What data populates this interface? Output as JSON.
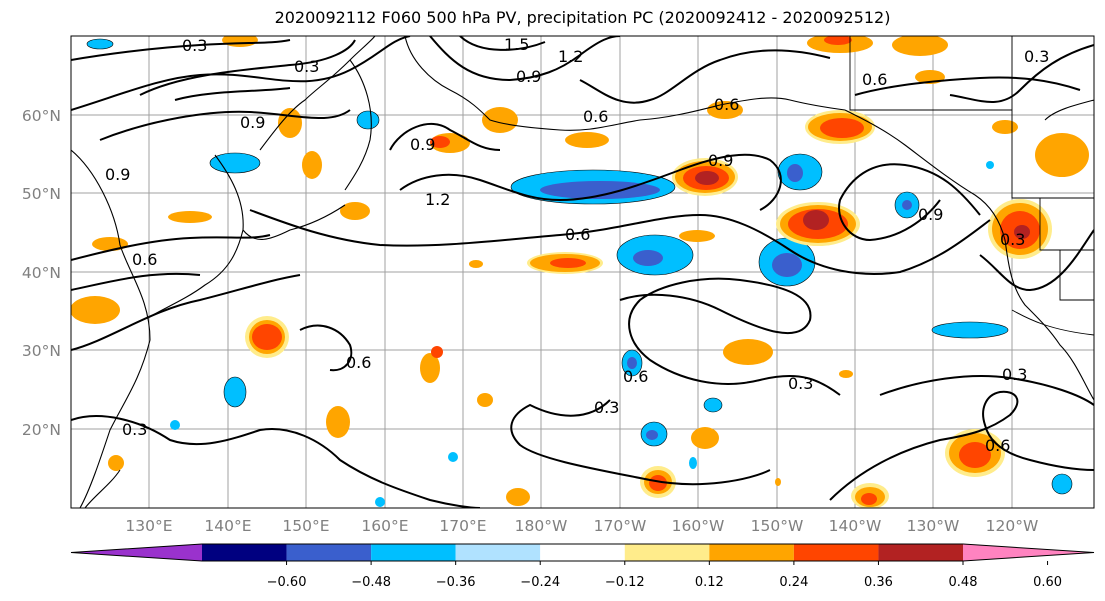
{
  "title": "2020092112 F060 500 hPa PV, precipitation PC (2020092412 - 2020092512)",
  "lat_labels": [
    "60°N",
    "50°N",
    "40°N",
    "30°N",
    "20°N"
  ],
  "lon_labels": [
    "130°E",
    "140°E",
    "150°E",
    "160°E",
    "170°E",
    "180°W",
    "170°W",
    "160°W",
    "150°W",
    "140°W",
    "130°W",
    "120°W"
  ],
  "pv_contour_labels": [
    {
      "text": "0.3"
    },
    {
      "text": "1.5"
    },
    {
      "text": "1.2"
    },
    {
      "text": "0.3"
    },
    {
      "text": "0.9"
    },
    {
      "text": "0.6"
    },
    {
      "text": "0.3"
    },
    {
      "text": "0.6"
    },
    {
      "text": "0.6"
    },
    {
      "text": "0.9"
    },
    {
      "text": "0.9"
    },
    {
      "text": "0.9"
    },
    {
      "text": "0.9"
    },
    {
      "text": "1.2"
    },
    {
      "text": "0.6"
    },
    {
      "text": "0.6"
    },
    {
      "text": "0.9"
    },
    {
      "text": "0.3"
    },
    {
      "text": "0.6"
    },
    {
      "text": "0.6"
    },
    {
      "text": "0.3"
    },
    {
      "text": "0.3"
    },
    {
      "text": "0.3"
    },
    {
      "text": "0.3"
    },
    {
      "text": "0.6"
    }
  ],
  "colorbar": {
    "ticks": [
      "−0.60",
      "−0.48",
      "−0.36",
      "−0.24",
      "−0.12",
      "0.12",
      "0.24",
      "0.36",
      "0.48",
      "0.60"
    ],
    "colors": [
      "#9a32cd",
      "#000080",
      "#3a5fcd",
      "#00bfff",
      "#b0e2ff",
      "#ffffff",
      "#ffec8b",
      "#ffa500",
      "#ff4500",
      "#b22222",
      "#ff83c0"
    ]
  }
}
